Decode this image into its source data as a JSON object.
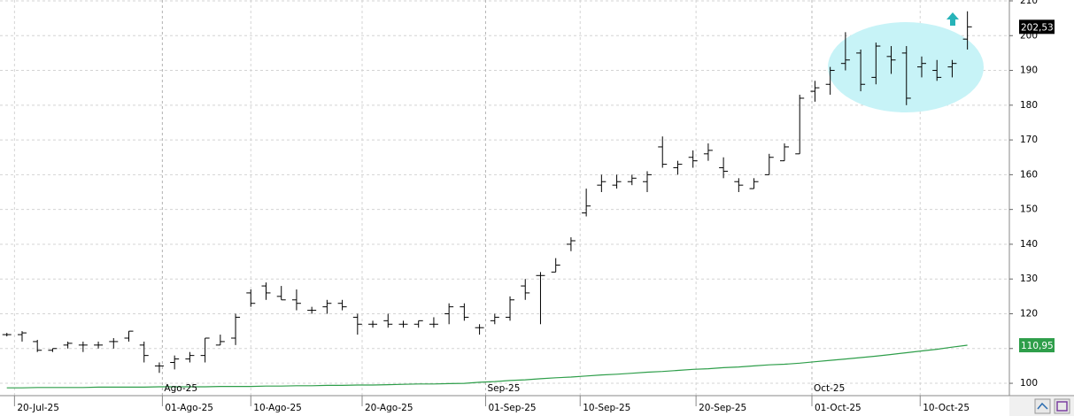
{
  "chart_data": {
    "type": "ohlc",
    "open": [
      114,
      114,
      112,
      109.5,
      111,
      111,
      111,
      112,
      113,
      111,
      105,
      106,
      107,
      108,
      111,
      113,
      126,
      128,
      125,
      124,
      121,
      122,
      123,
      119,
      117,
      118,
      117,
      117,
      117,
      120,
      122,
      116,
      118,
      119,
      128,
      131,
      132,
      140,
      149,
      157,
      157,
      158,
      158,
      168,
      162,
      165,
      166,
      162,
      158,
      156,
      160,
      164,
      166,
      184,
      186,
      192,
      195,
      188,
      194,
      195,
      191,
      190,
      191,
      199
    ],
    "high": [
      114.5,
      115,
      112.5,
      110,
      112,
      112,
      112,
      113,
      115,
      112,
      106,
      108,
      109,
      113,
      114,
      120,
      127,
      129,
      128,
      127,
      122,
      124,
      124,
      120,
      118,
      120,
      118,
      118,
      119,
      123,
      123,
      117,
      120,
      125,
      130,
      132,
      136,
      142,
      156,
      160,
      160,
      160,
      161,
      171,
      164,
      167,
      169,
      165,
      159,
      159,
      166,
      169,
      183,
      187,
      191,
      201,
      196,
      198,
      197,
      197,
      194,
      193,
      193,
      207
    ],
    "low": [
      113.5,
      112,
      109,
      109,
      110,
      109,
      110,
      110,
      112,
      106,
      103,
      104,
      106,
      106,
      111,
      111,
      122,
      124,
      124,
      121,
      120,
      120,
      121,
      114,
      116,
      116,
      116,
      116,
      116,
      117,
      118,
      114,
      117,
      118,
      124,
      117,
      132,
      138,
      148,
      155,
      156,
      157,
      155,
      162,
      160,
      162,
      164,
      159,
      155,
      156,
      160,
      164,
      166,
      181,
      183,
      190,
      184,
      186,
      189,
      180,
      188,
      187,
      188,
      196
    ],
    "close": [
      114,
      114.5,
      109.5,
      110,
      111.5,
      111,
      111,
      112,
      115,
      108,
      105,
      107,
      108,
      113,
      112,
      119,
      123,
      126,
      124,
      123,
      121,
      123,
      122,
      117,
      117,
      117,
      117,
      118,
      117,
      122,
      119,
      116,
      119,
      124,
      126,
      131,
      134,
      141,
      151,
      158,
      158,
      159,
      160,
      163,
      163,
      164,
      167,
      161,
      157,
      158,
      165,
      168,
      182,
      185,
      190,
      193,
      186,
      197,
      193,
      182,
      192,
      188,
      192,
      202.53
    ],
    "close_label": {
      "value": 202.53,
      "label": "202,53"
    },
    "ma": {
      "color": "#2e9e4a",
      "values": [
        98.7,
        98.7,
        98.8,
        98.8,
        98.8,
        98.8,
        98.9,
        98.9,
        98.9,
        98.9,
        99.0,
        99.0,
        99.0,
        99.0,
        99.1,
        99.1,
        99.1,
        99.2,
        99.2,
        99.3,
        99.3,
        99.4,
        99.4,
        99.5,
        99.5,
        99.6,
        99.7,
        99.8,
        99.8,
        99.9,
        100.0,
        100.3,
        100.5,
        100.8,
        101.0,
        101.3,
        101.6,
        101.8,
        102.1,
        102.4,
        102.6,
        102.9,
        103.2,
        103.4,
        103.7,
        104.0,
        104.2,
        104.5,
        104.7,
        105.0,
        105.3,
        105.5,
        105.8,
        106.2,
        106.6,
        107.0,
        107.4,
        107.8,
        108.3,
        108.8,
        109.3,
        109.8,
        110.4,
        110.95
      ],
      "last_label": {
        "value": 110.95,
        "label": "110,95"
      }
    },
    "xticks": [
      {
        "value": 0.5,
        "label": "20-Jul-25"
      },
      {
        "value": 10.2,
        "label": "01-Ago-25"
      },
      {
        "value": 16.0,
        "label": "10-Ago-25"
      },
      {
        "value": 23.3,
        "label": "20-Ago-25"
      },
      {
        "value": 31.4,
        "label": "01-Sep-25"
      },
      {
        "value": 37.6,
        "label": "10-Sep-25"
      },
      {
        "value": 45.2,
        "label": "20-Sep-25"
      },
      {
        "value": 52.8,
        "label": "01-Oct-25"
      },
      {
        "value": 59.9,
        "label": "10-Oct-25"
      }
    ],
    "month_ticks": [
      {
        "value": 10.2,
        "label": "Ago-25"
      },
      {
        "value": 31.4,
        "label": "Sep-25"
      },
      {
        "value": 52.8,
        "label": "Oct-25"
      }
    ],
    "xlim": [
      -0.45,
      65.75
    ],
    "ylim": [
      96.45,
      210.25
    ],
    "yticks": [
      100,
      110,
      120,
      130,
      140,
      150,
      160,
      170,
      180,
      190,
      200,
      210
    ],
    "grid": true
  }
}
